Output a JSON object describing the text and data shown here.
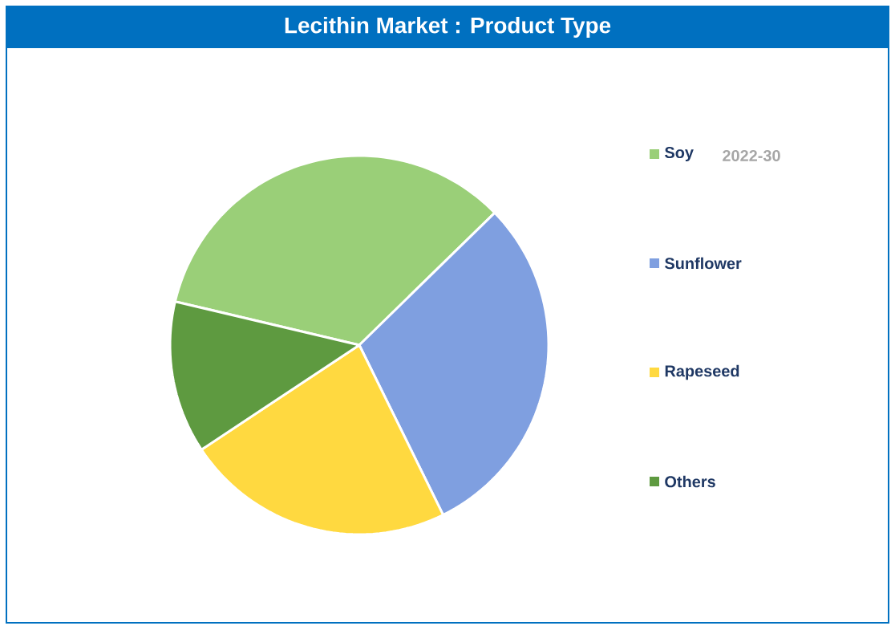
{
  "chart_data": {
    "type": "pie",
    "title": "Lecithin Market : Product Type",
    "subtitle": "2022-30",
    "categories": [
      "Soy",
      "Sunflower",
      "Rapeseed",
      "Others"
    ],
    "values": [
      34,
      30,
      23,
      13
    ],
    "colors": [
      "#9ACF78",
      "#7F9FE0",
      "#FFD940",
      "#5E9A40"
    ],
    "legend": "right"
  }
}
